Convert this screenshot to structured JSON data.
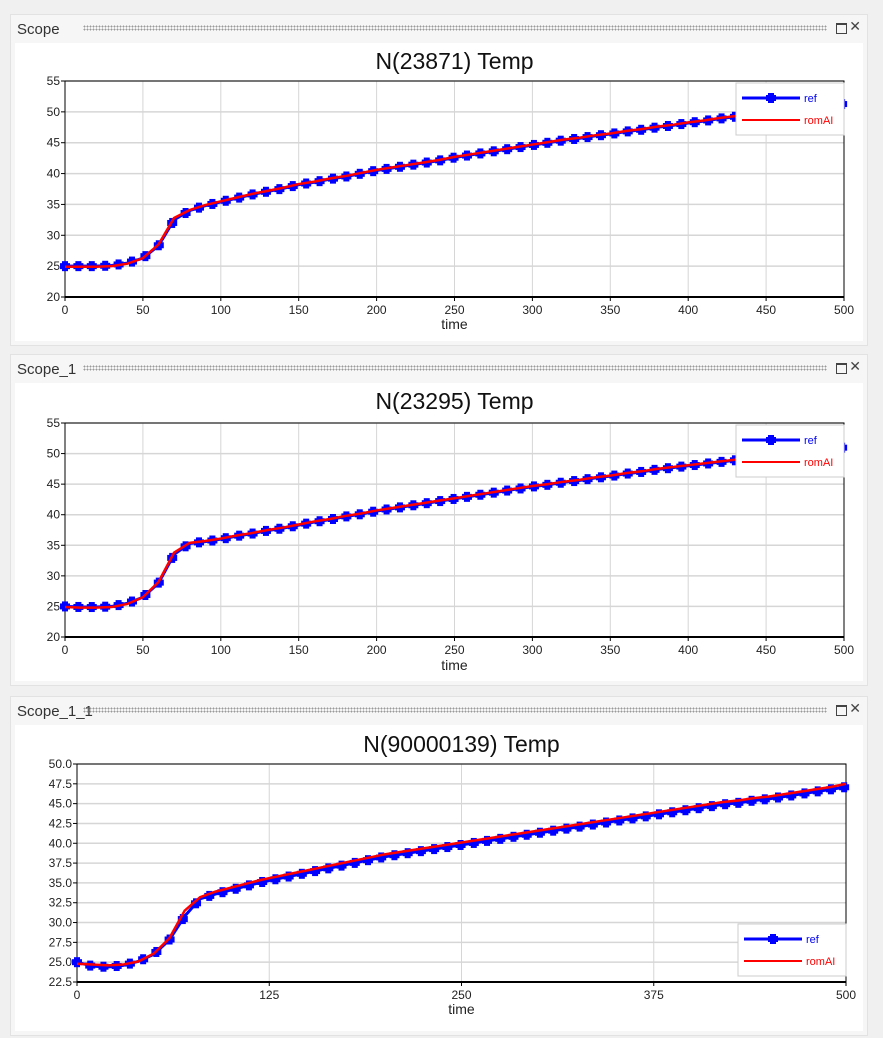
{
  "panels": [
    {
      "header": "Scope",
      "chart_data": {
        "type": "line",
        "title": "N(23871) Temp",
        "xlabel": "time",
        "ylabel": "",
        "xlim": [
          0,
          500
        ],
        "ylim": [
          20,
          55
        ],
        "xticks": [
          0,
          50,
          100,
          150,
          200,
          250,
          300,
          350,
          400,
          450,
          500
        ],
        "yticks": [
          20,
          25,
          30,
          35,
          40,
          45,
          50,
          55
        ],
        "ytick_decimals": 0,
        "grid": true,
        "legend": "top-right",
        "x_step": 10,
        "series": [
          {
            "name": "ref",
            "color": "#0000ff",
            "marker": true,
            "values": [
              25.0,
              25.0,
              25.0,
              25.1,
              25.5,
              26.3,
              28.3,
              32.5,
              34.0,
              34.8,
              35.4,
              36.0,
              36.6,
              37.1,
              37.6,
              38.2,
              38.6,
              39.1,
              39.5,
              40.0,
              40.5,
              40.9,
              41.3,
              41.7,
              42.1,
              42.6,
              43.0,
              43.4,
              43.8,
              44.2,
              44.6,
              45.0,
              45.4,
              45.7,
              46.1,
              46.4,
              46.8,
              47.1,
              47.5,
              47.8,
              48.2,
              48.5,
              48.9,
              49.2,
              49.5,
              49.8,
              50.1,
              50.4,
              50.7,
              51.0,
              51.3
            ]
          },
          {
            "name": "romAI",
            "color": "#ff0000",
            "marker": false,
            "values": [
              24.9,
              24.9,
              24.9,
              25.0,
              25.4,
              26.3,
              28.5,
              32.8,
              34.1,
              34.9,
              35.5,
              36.1,
              36.7,
              37.2,
              37.7,
              38.3,
              38.7,
              39.2,
              39.6,
              40.1,
              40.6,
              41.0,
              41.4,
              41.8,
              42.2,
              42.7,
              43.1,
              43.5,
              43.9,
              44.3,
              44.7,
              45.1,
              45.5,
              45.8,
              46.2,
              46.5,
              46.9,
              47.2,
              47.6,
              47.9,
              48.3,
              48.6,
              49.0,
              49.3,
              49.6,
              49.9,
              50.2,
              50.5,
              50.8,
              51.1,
              51.4
            ]
          }
        ]
      }
    },
    {
      "header": "Scope_1",
      "chart_data": {
        "type": "line",
        "title": "N(23295) Temp",
        "xlabel": "time",
        "ylabel": "",
        "xlim": [
          0,
          500
        ],
        "ylim": [
          20,
          55
        ],
        "xticks": [
          0,
          50,
          100,
          150,
          200,
          250,
          300,
          350,
          400,
          450,
          500
        ],
        "yticks": [
          20,
          25,
          30,
          35,
          40,
          45,
          50,
          55
        ],
        "ytick_decimals": 0,
        "grid": true,
        "legend": "top-right",
        "x_step": 10,
        "series": [
          {
            "name": "ref",
            "color": "#0000ff",
            "marker": true,
            "values": [
              25.0,
              24.9,
              24.9,
              25.0,
              25.5,
              26.5,
              28.8,
              33.5,
              35.3,
              35.6,
              36.0,
              36.5,
              36.9,
              37.4,
              37.8,
              38.3,
              38.8,
              39.2,
              39.7,
              40.1,
              40.6,
              41.0,
              41.4,
              41.8,
              42.2,
              42.6,
              43.0,
              43.4,
              43.8,
              44.2,
              44.6,
              44.9,
              45.3,
              45.6,
              46.0,
              46.3,
              46.7,
              47.0,
              47.4,
              47.7,
              48.0,
              48.3,
              48.6,
              48.9,
              49.2,
              49.5,
              49.8,
              50.1,
              50.4,
              50.7,
              51.0
            ]
          },
          {
            "name": "romAI",
            "color": "#ff0000",
            "marker": false,
            "values": [
              24.9,
              24.8,
              24.8,
              24.9,
              25.4,
              26.5,
              29.0,
              33.8,
              35.4,
              35.7,
              36.1,
              36.6,
              37.0,
              37.5,
              37.9,
              38.4,
              38.9,
              39.3,
              39.8,
              40.2,
              40.7,
              41.1,
              41.5,
              41.9,
              42.3,
              42.7,
              43.1,
              43.5,
              43.9,
              44.3,
              44.7,
              45.0,
              45.4,
              45.7,
              46.1,
              46.4,
              46.8,
              47.1,
              47.5,
              47.8,
              48.1,
              48.4,
              48.7,
              49.0,
              49.3,
              49.6,
              49.9,
              50.2,
              50.5,
              50.8,
              51.1
            ]
          }
        ]
      }
    },
    {
      "header": "Scope_1_1",
      "chart_data": {
        "type": "line",
        "title": "N(90000139) Temp",
        "xlabel": "time",
        "ylabel": "",
        "xlim": [
          0,
          500
        ],
        "ylim": [
          22.5,
          50
        ],
        "xticks": [
          0,
          125,
          250,
          375,
          500
        ],
        "yticks": [
          22.5,
          25,
          27.5,
          30,
          32.5,
          35,
          37.5,
          40,
          42.5,
          45,
          47.5,
          50
        ],
        "ytick_decimals": 1,
        "grid": true,
        "legend": "bottom-right",
        "x_step": 10,
        "series": [
          {
            "name": "ref",
            "color": "#0000ff",
            "marker": true,
            "values": [
              25.0,
              24.5,
              24.4,
              24.6,
              25.1,
              26.0,
              27.8,
              30.8,
              33.0,
              33.6,
              34.1,
              34.6,
              35.1,
              35.5,
              35.9,
              36.3,
              36.7,
              37.1,
              37.5,
              37.9,
              38.3,
              38.6,
              38.9,
              39.2,
              39.5,
              39.8,
              40.1,
              40.4,
              40.7,
              41.0,
              41.3,
              41.6,
              41.9,
              42.2,
              42.5,
              42.8,
              43.1,
              43.4,
              43.7,
              44.0,
              44.3,
              44.6,
              44.9,
              45.1,
              45.4,
              45.6,
              45.9,
              46.2,
              46.5,
              46.8,
              47.1
            ]
          },
          {
            "name": "romAI",
            "color": "#ff0000",
            "marker": false,
            "values": [
              24.8,
              24.7,
              24.6,
              24.7,
              25.1,
              26.1,
              28.0,
              31.5,
              33.2,
              33.9,
              34.4,
              34.9,
              35.4,
              35.8,
              36.2,
              36.6,
              37.0,
              37.4,
              37.8,
              38.2,
              38.6,
              38.9,
              39.2,
              39.5,
              39.8,
              40.1,
              40.4,
              40.7,
              41.0,
              41.3,
              41.6,
              41.9,
              42.2,
              42.5,
              42.8,
              43.1,
              43.4,
              43.7,
              44.0,
              44.3,
              44.6,
              44.9,
              45.2,
              45.4,
              45.7,
              45.9,
              46.2,
              46.5,
              46.8,
              47.1,
              47.5
            ]
          }
        ]
      }
    }
  ]
}
